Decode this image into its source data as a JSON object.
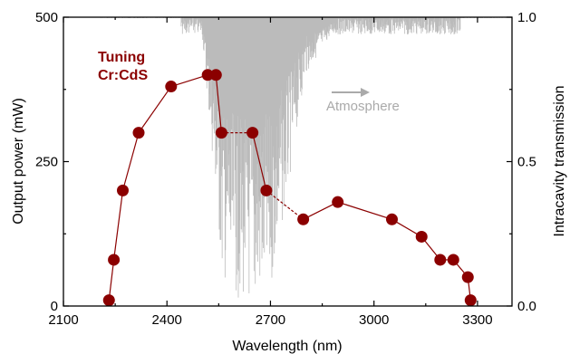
{
  "chart_data": {
    "type": "line",
    "xlabel": "Wavelength (nm)",
    "ylabel": "Output power (mW)",
    "y2label": "Intracavity transmission",
    "xlim": [
      2100,
      3400
    ],
    "ylim": [
      0,
      500
    ],
    "y2lim": [
      0.0,
      1.0
    ],
    "xticks": [
      "2100",
      "2400",
      "2700",
      "3000",
      "3300"
    ],
    "yticks": [
      "0",
      "250",
      "500"
    ],
    "y2ticks": [
      "0.0",
      "0.5",
      "1.0"
    ],
    "annotations": {
      "tuning_line1": "Tuning",
      "tuning_line2": "Cr:CdS",
      "atmosphere": "Atmosphere"
    },
    "colors": {
      "series": "#8b0000",
      "atmosphere": "#bbbbbb",
      "atmosphere_label": "#aaaaaa"
    },
    "series": [
      {
        "x": [
          2232,
          2246,
          2272,
          2318,
          2412,
          2518,
          2542,
          2558,
          2648,
          2688,
          2795,
          2895,
          3052,
          3138,
          3192,
          3230,
          3272,
          3280
        ],
        "y": [
          10,
          80,
          200,
          300,
          380,
          400,
          400,
          300,
          300,
          200,
          150,
          180,
          150,
          120,
          80,
          80,
          50,
          10
        ],
        "linestyle": [
          "solid",
          "solid",
          "solid",
          "solid",
          "solid",
          "solid",
          "solid",
          "dashed",
          "solid",
          "dashed",
          "solid",
          "solid",
          "solid",
          "solid",
          "solid",
          "solid",
          "solid"
        ]
      }
    ],
    "atmosphere_transmission": {
      "x_range": [
        2100,
        3400
      ],
      "description_points": [
        [
          2100,
          1.0
        ],
        [
          2480,
          1.0
        ],
        [
          2500,
          0.97
        ],
        [
          2540,
          0.4
        ],
        [
          2560,
          0.1
        ],
        [
          2600,
          0.03
        ],
        [
          2650,
          0.0
        ],
        [
          2700,
          0.05
        ],
        [
          2750,
          0.4
        ],
        [
          2800,
          0.8
        ],
        [
          2880,
          0.95
        ],
        [
          3050,
          0.99
        ],
        [
          3400,
          1.0
        ]
      ]
    }
  }
}
